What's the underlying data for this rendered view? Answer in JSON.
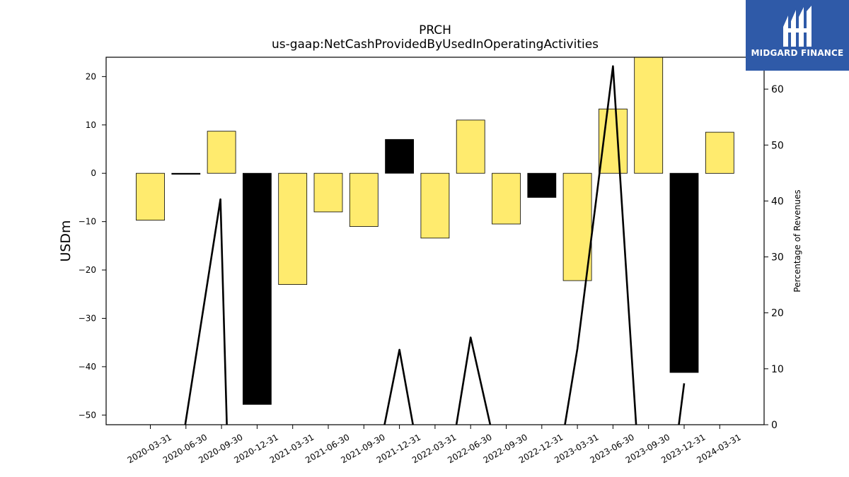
{
  "chart_data": {
    "type": "bar",
    "title": "PRCH",
    "subtitle": "us-gaap:NetCashProvidedByUsedInOperatingActivities",
    "ylabel": "USDm",
    "ylabel_right": "Percentage of Revenues",
    "ylim": [
      -52,
      24
    ],
    "ylim_right": [
      0,
      65.7
    ],
    "yticks": [
      20,
      10,
      0,
      -10,
      -20,
      -30,
      -40,
      -50
    ],
    "yticks_right": [
      0,
      10,
      20,
      30,
      40,
      50,
      60
    ],
    "categories": [
      "2020-03-31",
      "2020-06-30",
      "2020-09-30",
      "2020-12-31",
      "2021-03-31",
      "2021-06-30",
      "2021-09-30",
      "2021-12-31",
      "2022-03-31",
      "2022-06-30",
      "2022-09-30",
      "2022-12-31",
      "2023-03-31",
      "2023-06-30",
      "2023-09-30",
      "2023-12-31",
      "2024-03-31"
    ],
    "series": [
      {
        "type": "bar",
        "values": [
          -9.7,
          -0.2,
          8.7,
          -47.8,
          -23.0,
          -8.0,
          -11.0,
          7.0,
          -13.4,
          11.0,
          -10.5,
          -5.0,
          -22.2,
          13.3,
          24.5,
          -41.2,
          8.5
        ],
        "colors": [
          "#ffeb6e",
          "#000000",
          "#ffeb6e",
          "#000000",
          "#ffeb6e",
          "#ffeb6e",
          "#ffeb6e",
          "#000000",
          "#ffeb6e",
          "#ffeb6e",
          "#ffeb6e",
          "#000000",
          "#ffeb6e",
          "#ffeb6e",
          "#ffeb6e",
          "#000000",
          "#ffeb6e"
        ]
      },
      {
        "type": "line",
        "axis": "right",
        "color": "#000000",
        "segments": [
          [
            [
              0.98,
              0
            ],
            [
              1.97,
              40.3
            ],
            [
              2.15,
              0
            ]
          ],
          [
            [
              6.58,
              0
            ],
            [
              7.0,
              13.4
            ],
            [
              7.38,
              0
            ]
          ],
          [
            [
              8.6,
              0
            ],
            [
              9.0,
              15.6
            ],
            [
              9.55,
              0
            ]
          ],
          [
            [
              11.65,
              0
            ],
            [
              12.0,
              13.6
            ],
            [
              13.0,
              64.1
            ],
            [
              13.65,
              0
            ]
          ],
          [
            [
              14.85,
              0
            ],
            [
              15.0,
              7.4
            ]
          ]
        ]
      }
    ],
    "colors": {
      "positive": "#ffeb6e",
      "negative_dark": "#000000"
    },
    "grid": false,
    "legend": "none"
  },
  "logo": {
    "text": "MIDGARD FINANCE",
    "background": "#2f5aa8"
  }
}
